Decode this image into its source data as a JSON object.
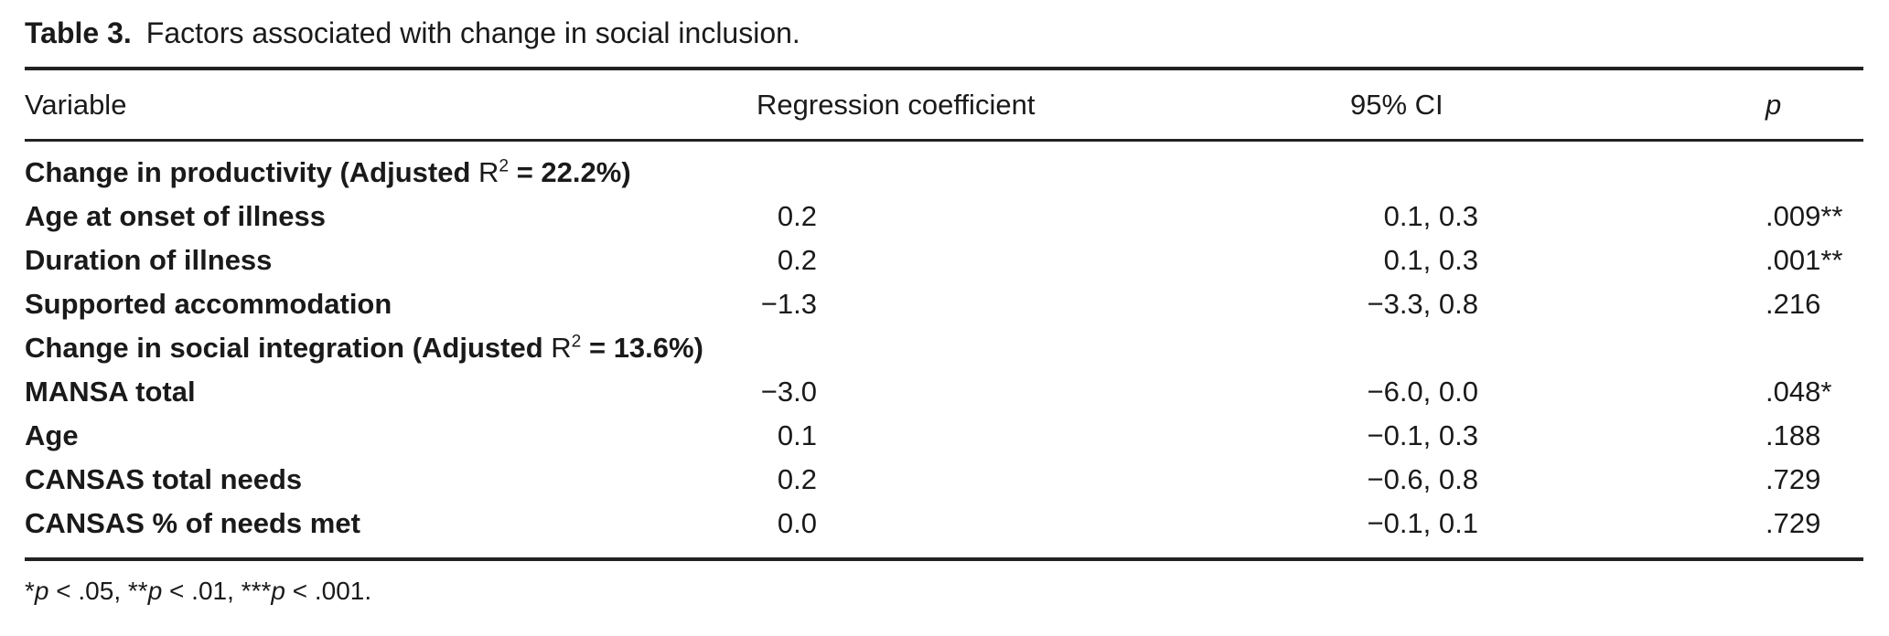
{
  "title": {
    "label": "Table 3.",
    "caption": "Factors associated with change in social inclusion."
  },
  "columns": [
    "Variable",
    "Regression coefficient",
    "95% CI",
    "p"
  ],
  "rows": [
    {
      "kind": "section",
      "parts": [
        [
          "Change in productivity (Adjusted ",
          ""
        ],
        [
          "R",
          "n"
        ],
        [
          "2",
          "nsup"
        ],
        [
          " = 22.2%)",
          ""
        ]
      ]
    },
    {
      "kind": "data",
      "variable": "Age at onset of illness",
      "coef": "0.2",
      "ci": "0.1, 0.3",
      "p": ".009**"
    },
    {
      "kind": "data",
      "variable": "Duration of illness",
      "coef": "0.2",
      "ci": "0.1, 0.3",
      "p": ".001**"
    },
    {
      "kind": "data",
      "variable": "Supported accommodation",
      "coef": "−1.3",
      "ci": "−3.3, 0.8",
      "p": ".216"
    },
    {
      "kind": "section",
      "parts": [
        [
          "Change in social integration (Adjusted ",
          ""
        ],
        [
          "R",
          "n"
        ],
        [
          "2",
          "nsup"
        ],
        [
          " = 13.6%)",
          ""
        ]
      ]
    },
    {
      "kind": "data",
      "variable": "MANSA total",
      "coef": "−3.0",
      "ci": "−6.0, 0.0",
      "p": ".048*"
    },
    {
      "kind": "data",
      "variable": "Age",
      "coef": "0.1",
      "ci": "−0.1, 0.3",
      "p": ".188"
    },
    {
      "kind": "data",
      "variable": "CANSAS total needs",
      "coef": "0.2",
      "ci": "−0.6, 0.8",
      "p": ".729"
    },
    {
      "kind": "data",
      "variable": "CANSAS % of needs met",
      "coef": "0.0",
      "ci": "−0.1, 0.1",
      "p": ".729"
    }
  ],
  "footnote_parts": [
    [
      "*",
      ""
    ],
    [
      "p",
      "i"
    ],
    [
      " < .05, ",
      ""
    ],
    [
      "**",
      ""
    ],
    [
      "p",
      "i"
    ],
    [
      " < .01, ",
      ""
    ],
    [
      "***",
      ""
    ],
    [
      "p",
      "i"
    ],
    [
      " < .001.",
      ""
    ]
  ],
  "colors": {
    "ink": "#1a1a1a",
    "rule": "#222222",
    "background": "#ffffff"
  }
}
